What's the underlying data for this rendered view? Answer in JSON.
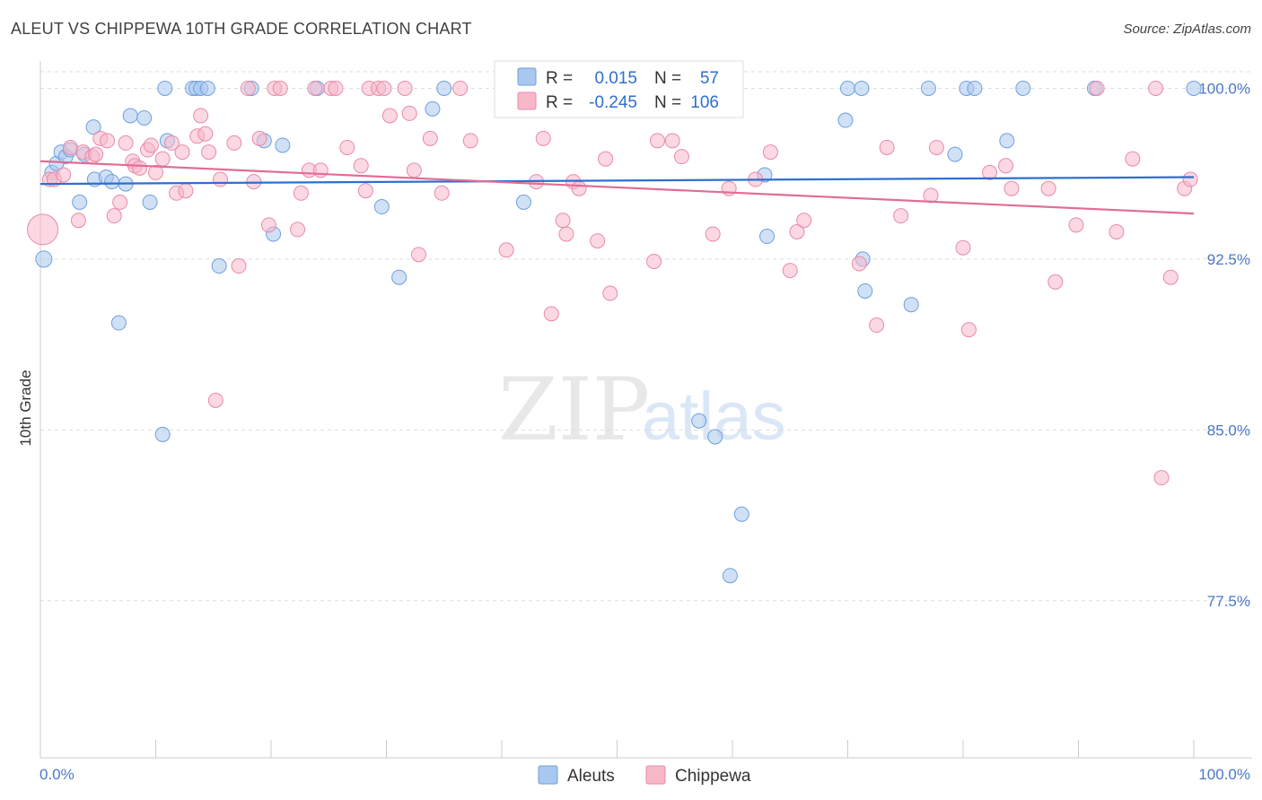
{
  "header": {
    "title": "ALEUT VS CHIPPEWA 10TH GRADE CORRELATION CHART",
    "source": "Source: ZipAtlas.com"
  },
  "watermark": {
    "zip": "ZIP",
    "atlas": "atlas"
  },
  "legend_box": {
    "rows": [
      {
        "r_label": "R =",
        "r_value": "0.015",
        "n_label": "N =",
        "n_value": "57",
        "color": "#a9c8ef",
        "stroke": "#6f9fde"
      },
      {
        "r_label": "R =",
        "r_value": "-0.245",
        "n_label": "N =",
        "n_value": "106",
        "color": "#f7b8ca",
        "stroke": "#e98aa8"
      }
    ]
  },
  "bottom_legend": [
    {
      "label": "Aleuts",
      "color": "#a9c8ef",
      "stroke": "#6f9fde"
    },
    {
      "label": "Chippewa",
      "color": "#f7b8ca",
      "stroke": "#e98aa8"
    }
  ],
  "chart_data": {
    "type": "scatter",
    "title": "ALEUT VS CHIPPEWA 10TH GRADE CORRELATION CHART",
    "xlabel": "",
    "ylabel": "10th Grade",
    "xlim": [
      0,
      100
    ],
    "ylim": [
      70.6,
      101.2
    ],
    "x_tick_labels": [
      {
        "value": 0,
        "label": "0.0%"
      },
      {
        "value": 100,
        "label": "100.0%"
      }
    ],
    "y_ticks": [
      {
        "value": 100.0,
        "label": "100.0%"
      },
      {
        "value": 92.5,
        "label": "92.5%"
      },
      {
        "value": 85.0,
        "label": "85.0%"
      },
      {
        "value": 77.5,
        "label": "77.5%"
      }
    ],
    "grid": "horizontal-dashed",
    "legend_placement": "top-center",
    "series": [
      {
        "name": "Aleuts",
        "color": "#6f9fde",
        "fill": "#a9c8ef",
        "trend": {
          "x": [
            0,
            100
          ],
          "y": [
            95.8,
            96.1
          ]
        },
        "points": [
          [
            0.3,
            92.5,
            9
          ],
          [
            1.0,
            96.3,
            8
          ],
          [
            1.4,
            96.7,
            8
          ],
          [
            1.8,
            97.2,
            8
          ],
          [
            2.2,
            97.0,
            8
          ],
          [
            2.6,
            97.3,
            8
          ],
          [
            3.4,
            95.0,
            8
          ],
          [
            3.8,
            97.1,
            8
          ],
          [
            4.6,
            98.3,
            8
          ],
          [
            4.7,
            96.0,
            8
          ],
          [
            5.7,
            96.1,
            8
          ],
          [
            6.2,
            95.9,
            8
          ],
          [
            6.8,
            89.7,
            8
          ],
          [
            7.4,
            95.8,
            8
          ],
          [
            7.8,
            98.8,
            8
          ],
          [
            9.0,
            98.7,
            8
          ],
          [
            9.5,
            95.0,
            8
          ],
          [
            10.6,
            84.8,
            8
          ],
          [
            10.8,
            100.0,
            8
          ],
          [
            11.0,
            97.7,
            8
          ],
          [
            13.2,
            100.0,
            8
          ],
          [
            13.5,
            100.0,
            8
          ],
          [
            13.9,
            100.0,
            8
          ],
          [
            14.5,
            100.0,
            8
          ],
          [
            15.5,
            92.2,
            8
          ],
          [
            18.3,
            100.0,
            8
          ],
          [
            19.4,
            97.7,
            8
          ],
          [
            20.2,
            93.6,
            8
          ],
          [
            21.0,
            97.5,
            8
          ],
          [
            24.0,
            100.0,
            8
          ],
          [
            29.6,
            94.8,
            8
          ],
          [
            31.1,
            91.7,
            8
          ],
          [
            34.0,
            99.1,
            8
          ],
          [
            35.0,
            100.0,
            8
          ],
          [
            41.9,
            95.0,
            8
          ],
          [
            47.0,
            100.0,
            8
          ],
          [
            53.1,
            100.0,
            8
          ],
          [
            57.1,
            85.4,
            8
          ],
          [
            58.5,
            84.7,
            8
          ],
          [
            59.8,
            78.6,
            8
          ],
          [
            60.8,
            81.3,
            8
          ],
          [
            62.8,
            96.2,
            8
          ],
          [
            63.0,
            93.5,
            8
          ],
          [
            69.8,
            98.6,
            8
          ],
          [
            70.0,
            100.0,
            8
          ],
          [
            71.2,
            100.0,
            8
          ],
          [
            71.3,
            92.5,
            8
          ],
          [
            71.5,
            91.1,
            8
          ],
          [
            75.5,
            90.5,
            8
          ],
          [
            77.0,
            100.0,
            8
          ],
          [
            79.3,
            97.1,
            8
          ],
          [
            80.3,
            100.0,
            8
          ],
          [
            81.0,
            100.0,
            8
          ],
          [
            83.8,
            97.7,
            8
          ],
          [
            85.2,
            100.0,
            8
          ],
          [
            91.4,
            100.0,
            8
          ],
          [
            100.0,
            100.0,
            8
          ]
        ]
      },
      {
        "name": "Chippewa",
        "color": "#e98aa8",
        "fill": "#f7b8ca",
        "trend": {
          "x": [
            0,
            100
          ],
          "y": [
            96.8,
            94.5
          ]
        },
        "points": [
          [
            0.2,
            93.8,
            17
          ],
          [
            0.8,
            96.0,
            8
          ],
          [
            1.2,
            96.0,
            8
          ],
          [
            2.0,
            96.2,
            8
          ],
          [
            2.6,
            97.4,
            8
          ],
          [
            3.3,
            94.2,
            8
          ],
          [
            3.7,
            97.2,
            8
          ],
          [
            4.5,
            97.0,
            8
          ],
          [
            4.8,
            97.1,
            8
          ],
          [
            5.2,
            97.8,
            8
          ],
          [
            5.8,
            97.7,
            8
          ],
          [
            6.4,
            94.4,
            8
          ],
          [
            6.9,
            95.0,
            8
          ],
          [
            7.4,
            97.6,
            8
          ],
          [
            8.0,
            96.8,
            8
          ],
          [
            8.2,
            96.6,
            8
          ],
          [
            8.6,
            96.5,
            8
          ],
          [
            9.3,
            97.3,
            8
          ],
          [
            9.6,
            97.5,
            8
          ],
          [
            10.0,
            96.3,
            8
          ],
          [
            10.6,
            96.9,
            8
          ],
          [
            11.4,
            97.6,
            8
          ],
          [
            11.8,
            95.4,
            8
          ],
          [
            12.3,
            97.2,
            8
          ],
          [
            12.6,
            95.5,
            8
          ],
          [
            13.6,
            97.9,
            8
          ],
          [
            13.9,
            98.8,
            8
          ],
          [
            14.3,
            98.0,
            8
          ],
          [
            14.6,
            97.2,
            8
          ],
          [
            15.2,
            86.3,
            8
          ],
          [
            15.6,
            96.0,
            8
          ],
          [
            16.8,
            97.6,
            8
          ],
          [
            17.2,
            92.2,
            8
          ],
          [
            18.0,
            100.0,
            8
          ],
          [
            18.5,
            95.9,
            8
          ],
          [
            19.0,
            97.8,
            8
          ],
          [
            19.8,
            94.0,
            8
          ],
          [
            20.3,
            100.0,
            8
          ],
          [
            20.8,
            100.0,
            8
          ],
          [
            22.3,
            93.8,
            8
          ],
          [
            22.6,
            95.4,
            8
          ],
          [
            23.3,
            96.4,
            8
          ],
          [
            23.8,
            100.0,
            8
          ],
          [
            24.3,
            96.4,
            8
          ],
          [
            25.2,
            100.0,
            8
          ],
          [
            25.6,
            100.0,
            8
          ],
          [
            26.6,
            97.4,
            8
          ],
          [
            27.8,
            96.6,
            8
          ],
          [
            28.2,
            95.5,
            8
          ],
          [
            28.5,
            100.0,
            8
          ],
          [
            29.3,
            100.0,
            8
          ],
          [
            29.8,
            100.0,
            8
          ],
          [
            30.3,
            98.8,
            8
          ],
          [
            31.6,
            100.0,
            8
          ],
          [
            32.0,
            98.9,
            8
          ],
          [
            32.4,
            96.4,
            8
          ],
          [
            32.8,
            92.7,
            8
          ],
          [
            33.8,
            97.8,
            8
          ],
          [
            34.8,
            95.4,
            8
          ],
          [
            36.4,
            100.0,
            8
          ],
          [
            37.3,
            97.7,
            8
          ],
          [
            40.4,
            92.9,
            8
          ],
          [
            43.0,
            95.9,
            8
          ],
          [
            43.6,
            97.8,
            8
          ],
          [
            44.3,
            90.1,
            8
          ],
          [
            45.3,
            94.2,
            8
          ],
          [
            45.6,
            93.6,
            8
          ],
          [
            46.2,
            95.9,
            8
          ],
          [
            46.7,
            95.6,
            8
          ],
          [
            48.3,
            93.3,
            8
          ],
          [
            49.0,
            96.9,
            8
          ],
          [
            49.4,
            91.0,
            8
          ],
          [
            52.0,
            99.1,
            8
          ],
          [
            53.2,
            92.4,
            8
          ],
          [
            53.5,
            97.7,
            8
          ],
          [
            54.8,
            97.7,
            8
          ],
          [
            55.6,
            97.0,
            8
          ],
          [
            58.3,
            93.6,
            8
          ],
          [
            59.7,
            95.6,
            8
          ],
          [
            62.0,
            96.0,
            8
          ],
          [
            63.3,
            97.2,
            8
          ],
          [
            65.0,
            92.0,
            8
          ],
          [
            65.6,
            93.7,
            8
          ],
          [
            66.2,
            94.2,
            8
          ],
          [
            71.0,
            92.3,
            8
          ],
          [
            72.5,
            89.6,
            8
          ],
          [
            73.4,
            97.4,
            8
          ],
          [
            74.6,
            94.4,
            8
          ],
          [
            77.2,
            95.3,
            8
          ],
          [
            77.7,
            97.4,
            8
          ],
          [
            80.0,
            93.0,
            8
          ],
          [
            80.5,
            89.4,
            8
          ],
          [
            82.3,
            96.3,
            8
          ],
          [
            83.7,
            96.6,
            8
          ],
          [
            84.2,
            95.6,
            8
          ],
          [
            87.4,
            95.6,
            8
          ],
          [
            88.0,
            91.5,
            8
          ],
          [
            89.8,
            94.0,
            8
          ],
          [
            91.6,
            100.0,
            8
          ],
          [
            93.3,
            93.7,
            8
          ],
          [
            94.7,
            96.9,
            8
          ],
          [
            96.7,
            100.0,
            8
          ],
          [
            97.2,
            82.9,
            8
          ],
          [
            98.0,
            91.7,
            8
          ],
          [
            99.2,
            95.6,
            8
          ],
          [
            99.7,
            96.0,
            8
          ]
        ]
      }
    ]
  }
}
